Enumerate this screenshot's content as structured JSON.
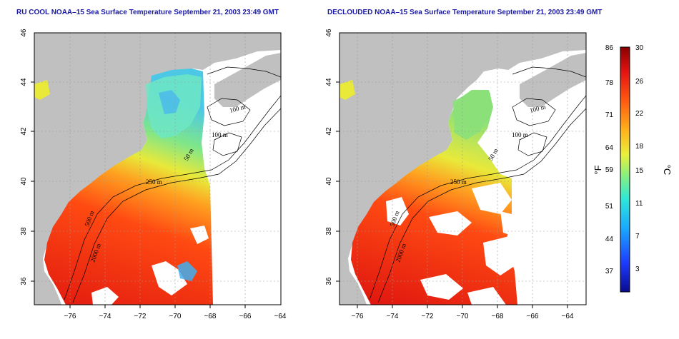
{
  "titles": {
    "left": "RU COOL NOAA–15 Sea Surface Temperature September 21, 2003 23:49 GMT",
    "right": "DECLOUDED NOAA–15 Sea Surface Temperature September 21, 2003 23:49 GMT"
  },
  "x_ticks": [
    "−76",
    "−74",
    "−72",
    "−70",
    "−68",
    "−66",
    "−64"
  ],
  "y_ticks": [
    "36",
    "38",
    "40",
    "42",
    "44",
    "46"
  ],
  "contour_labels": [
    "100 m",
    "100 m",
    "50 m",
    "250 m",
    "500 m",
    "2000 m"
  ],
  "colorbar": {
    "fahrenheit_ticks": [
      "86",
      "78",
      "71",
      "64",
      "59",
      "51",
      "44",
      "37"
    ],
    "celsius_ticks": [
      "30",
      "26",
      "22",
      "18",
      "15",
      "11",
      "7",
      "3"
    ],
    "unit_f": "°F",
    "unit_c": "°C"
  },
  "colors": {
    "land": "#c0c0c0",
    "water_missing": "#ffffff",
    "title": "#1a1aa6",
    "grid": "#9a9a9a"
  }
}
